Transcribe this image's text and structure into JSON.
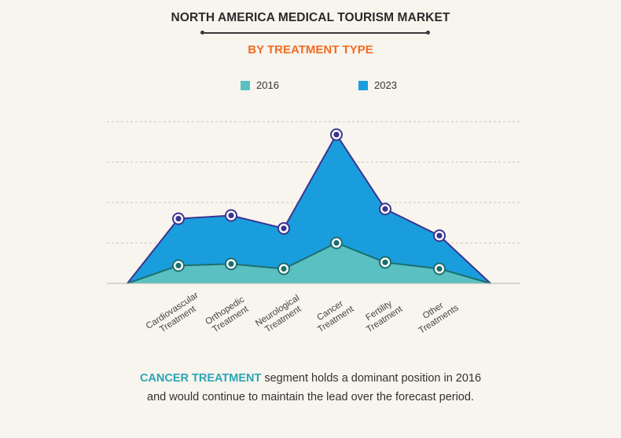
{
  "header": {
    "title": "NORTH AMERICA MEDICAL TOURISM MARKET",
    "subtitle": "BY TREATMENT TYPE"
  },
  "colors": {
    "series_2016": "#5bc0c2",
    "series_2023": "#1a9ddc",
    "line_2016": "#1b6f6d",
    "line_2023": "#3a3590",
    "subtitle": "#f26d21",
    "highlight": "#2aa6b5"
  },
  "chart_data": {
    "type": "area",
    "categories": [
      [
        "Cardiovascular",
        "Treatment"
      ],
      [
        "Orthopedic",
        "Treatment"
      ],
      [
        "Neurological",
        "Treatment"
      ],
      [
        "Cancer",
        "Treatment"
      ],
      [
        "Fertility",
        "Treatment"
      ],
      [
        "Other",
        "Treatments"
      ]
    ],
    "series": [
      {
        "name": "2016",
        "values": [
          0.22,
          0.24,
          0.18,
          0.5,
          0.26,
          0.18
        ]
      },
      {
        "name": "2023",
        "values": [
          0.8,
          0.84,
          0.68,
          1.84,
          0.92,
          0.59
        ]
      }
    ],
    "ylim": [
      0,
      2.0
    ],
    "grid": true,
    "legend_position": "top",
    "axis_labels_visible": false
  },
  "footer": {
    "highlight": "CANCER TREATMENT",
    "text_line1": " segment holds a dominant position in 2016",
    "text_line2": "and would continue to maintain the lead over the forecast period."
  }
}
